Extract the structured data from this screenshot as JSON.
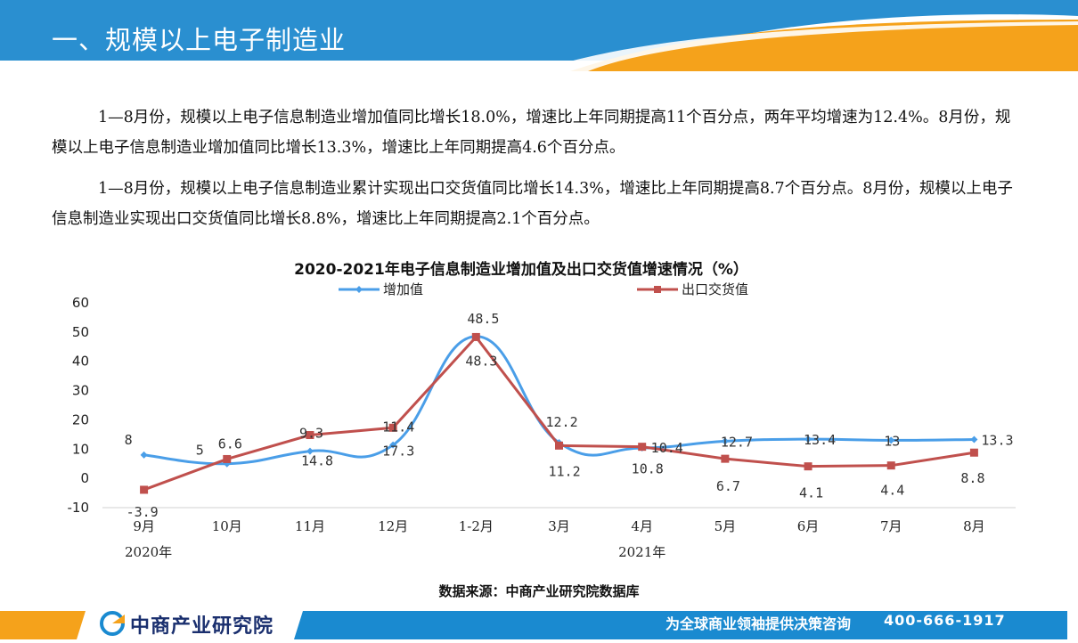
{
  "header": {
    "title": "一、规模以上电子制造业"
  },
  "paragraphs": [
    "1—8月份，规模以上电子信息制造业增加值同比增长18.0%，增速比上年同期提高11个百分点，两年平均增速为12.4%。8月份，规模以上电子信息制造业增加值同比增长13.3%，增速比上年同期提高4.6个百分点。",
    "1—8月份，规模以上电子信息制造业累计实现出口交货值同比增长14.3%，增速比上年同期提高8.7个百分点。8月份，规模以上电子信息制造业实现出口交货值同比增长8.8%，增速比上年同期提高2.1个百分点。"
  ],
  "chart_data": {
    "type": "line",
    "title": "2020-2021年电子信息制造业增加值及出口交货值增速情况（%）",
    "categories": [
      "9月",
      "10月",
      "11月",
      "12月",
      "1-2月",
      "3月",
      "4月",
      "5月",
      "6月",
      "7月",
      "8月"
    ],
    "year_labels": [
      {
        "label": "2020年",
        "category_index": 0
      },
      {
        "label": "2021年",
        "category_index": 6
      }
    ],
    "series": [
      {
        "name": "增加值",
        "color": "#4a9ee8",
        "marker": "diamond",
        "smooth": true,
        "values": [
          8,
          5,
          9.3,
          11.4,
          48.5,
          12.2,
          10.4,
          12.7,
          13.4,
          13,
          13.3
        ],
        "labels": [
          "8",
          "5",
          "9.3",
          "11.4",
          "48.5",
          "12.2",
          "10.4",
          "12.7",
          "13.4",
          "13",
          "13.3"
        ]
      },
      {
        "name": "出口交货值",
        "color": "#c0504d",
        "marker": "square",
        "smooth": false,
        "values": [
          -3.9,
          6.6,
          14.8,
          17.3,
          48.3,
          11.2,
          10.8,
          6.7,
          4.1,
          4.4,
          8.8
        ],
        "labels": [
          "-3.9",
          "6.6",
          "14.8",
          "17.3",
          "48.3",
          "11.2",
          "10.8",
          "6.7",
          "4.1",
          "4.4",
          "8.8"
        ]
      }
    ],
    "ylim": [
      -10,
      60
    ],
    "yticks": [
      -10,
      0,
      10,
      20,
      30,
      40,
      50,
      60
    ],
    "grid": false,
    "legend": "top"
  },
  "source": "数据来源：中商产业研究院数据库",
  "footer": {
    "logo_text": "中商产业研究院",
    "slogan": "为全球商业领袖提供决策咨询",
    "phone": "400-666-1917"
  },
  "colors": {
    "header_blue": "#2a8fd0",
    "accent_orange": "#f5a21b",
    "footer_navy": "#1a2f6e"
  }
}
